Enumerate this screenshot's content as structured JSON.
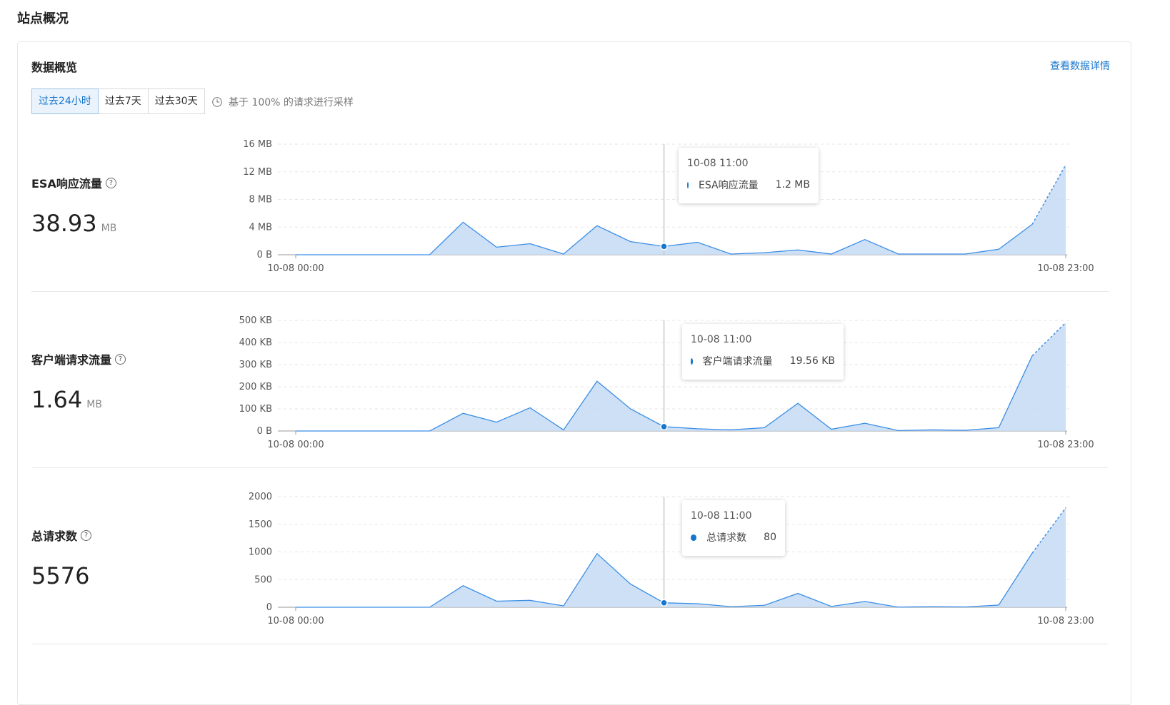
{
  "page": {
    "title": "站点概况"
  },
  "overview": {
    "title": "数据概览",
    "details_link": "查看数据详情",
    "ranges": [
      "过去24小时",
      "过去7天",
      "过去30天"
    ],
    "active_range_index": 0,
    "sampling_text": "基于 100% 的请求进行采样"
  },
  "colors": {
    "accent": "#1677cc",
    "series_line": "#3a8ee6",
    "series_fill": "#c4dbf3"
  },
  "icons": {
    "help": "help-circle-icon",
    "sampling": "clock-icon"
  },
  "metrics": [
    {
      "label": "ESA响应流量",
      "value": "38.93",
      "unit": "MB",
      "tooltip": {
        "time": "10-08 11:00",
        "series": "ESA响应流量",
        "value": "1.2 MB"
      }
    },
    {
      "label": "客户端请求流量",
      "value": "1.64",
      "unit": "MB",
      "tooltip": {
        "time": "10-08 11:00",
        "series": "客户端请求流量",
        "value": "19.56 KB"
      }
    },
    {
      "label": "总请求数",
      "value": "5576",
      "unit": "",
      "tooltip": {
        "time": "10-08 11:00",
        "series": "总请求数",
        "value": "80"
      }
    }
  ],
  "chart_data": [
    {
      "type": "area",
      "title": "",
      "xlabel": "",
      "ylabel": "",
      "x_tick_labels": [
        "10-08 00:00",
        "10-08 23:00"
      ],
      "y_ticks": [
        "0 B",
        "4 MB",
        "8 MB",
        "12 MB",
        "16 MB"
      ],
      "ylim": [
        0,
        16
      ],
      "y_unit": "MB",
      "grid": true,
      "highlight_index": 11,
      "dashed_from_index": 22,
      "series": [
        {
          "name": "ESA响应流量",
          "values": [
            0,
            0,
            0,
            0,
            0,
            4.7,
            1.1,
            1.6,
            0.1,
            4.2,
            1.9,
            1.2,
            1.8,
            0.1,
            0.3,
            0.7,
            0.1,
            2.2,
            0.1,
            0.1,
            0.1,
            0.8,
            4.4,
            13.0
          ]
        }
      ]
    },
    {
      "type": "area",
      "title": "",
      "xlabel": "",
      "ylabel": "",
      "x_tick_labels": [
        "10-08 00:00",
        "10-08 23:00"
      ],
      "y_ticks": [
        "0 B",
        "100 KB",
        "200 KB",
        "300 KB",
        "400 KB",
        "500 KB"
      ],
      "ylim": [
        0,
        500
      ],
      "y_unit": "KB",
      "grid": true,
      "highlight_index": 11,
      "dashed_from_index": 22,
      "series": [
        {
          "name": "客户端请求流量",
          "values": [
            0,
            0,
            0,
            0,
            0,
            80,
            40,
            105,
            5,
            225,
            100,
            19.56,
            10,
            5,
            15,
            125,
            8,
            35,
            2,
            5,
            3,
            15,
            340,
            490
          ]
        }
      ]
    },
    {
      "type": "area",
      "title": "",
      "xlabel": "",
      "ylabel": "",
      "x_tick_labels": [
        "10-08 00:00",
        "10-08 23:00"
      ],
      "y_ticks": [
        "0",
        "500",
        "1000",
        "1500",
        "2000"
      ],
      "ylim": [
        0,
        2000
      ],
      "y_unit": "",
      "grid": true,
      "highlight_index": 11,
      "dashed_from_index": 22,
      "series": [
        {
          "name": "总请求数",
          "values": [
            0,
            0,
            0,
            0,
            0,
            390,
            110,
            125,
            25,
            970,
            420,
            80,
            65,
            10,
            35,
            250,
            15,
            105,
            2,
            10,
            5,
            40,
            980,
            1800
          ]
        }
      ]
    }
  ]
}
